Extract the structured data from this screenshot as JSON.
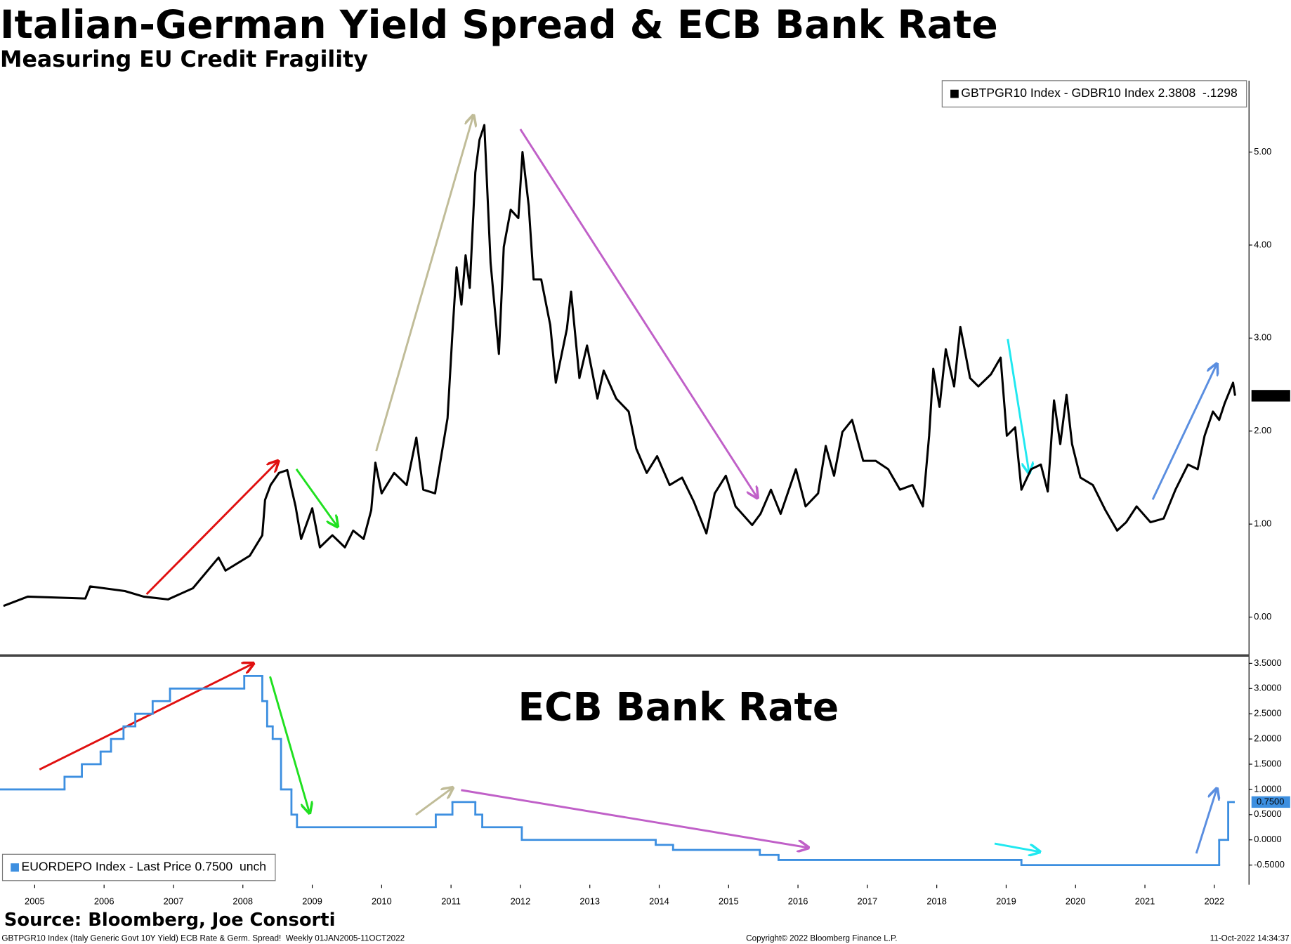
{
  "title": "Italian-German Yield Spread & ECB Bank Rate",
  "subtitle": "Measuring EU Credit Fragility",
  "chart_data": [
    {
      "type": "line",
      "legend": "top-right",
      "last_price_label": "2.3808",
      "xlim": [
        2005.0,
        2023.0
      ],
      "ylim": [
        -0.4,
        5.75
      ],
      "yticks": [
        {
          "value": 0,
          "label": "0.00"
        },
        {
          "value": 1,
          "label": "1.00"
        },
        {
          "value": 2,
          "label": "2.00"
        },
        {
          "value": 3,
          "label": "3.00"
        },
        {
          "value": 4,
          "label": "4.00"
        },
        {
          "value": 5,
          "label": "5.00"
        }
      ],
      "x": [
        2005.05,
        2005.4,
        2006.23,
        2006.3,
        2006.8,
        2007.07,
        2007.42,
        2007.78,
        2008.15,
        2008.25,
        2008.6,
        2008.78,
        2008.82,
        2008.9,
        2009.02,
        2009.14,
        2009.26,
        2009.34,
        2009.5,
        2009.61,
        2009.79,
        2009.97,
        2010.09,
        2010.24,
        2010.35,
        2010.41,
        2010.5,
        2010.68,
        2010.86,
        2011.0,
        2011.1,
        2011.27,
        2011.45,
        2011.52,
        2011.58,
        2011.65,
        2011.71,
        2011.77,
        2011.85,
        2011.91,
        2011.98,
        2012.07,
        2012.19,
        2012.26,
        2012.36,
        2012.47,
        2012.53,
        2012.62,
        2012.69,
        2012.8,
        2012.93,
        2013.01,
        2013.17,
        2013.23,
        2013.35,
        2013.46,
        2013.61,
        2013.7,
        2013.88,
        2014.06,
        2014.17,
        2014.32,
        2014.47,
        2014.65,
        2014.83,
        2015.0,
        2015.18,
        2015.3,
        2015.46,
        2015.6,
        2015.84,
        2015.96,
        2016.11,
        2016.25,
        2016.47,
        2016.61,
        2016.79,
        2016.9,
        2017.02,
        2017.14,
        2017.28,
        2017.44,
        2017.62,
        2017.8,
        2017.97,
        2018.15,
        2018.3,
        2018.39,
        2018.45,
        2018.54,
        2018.63,
        2018.75,
        2018.84,
        2018.98,
        2019.1,
        2019.28,
        2019.42,
        2019.51,
        2019.63,
        2019.72,
        2019.86,
        2020.0,
        2020.1,
        2020.19,
        2020.28,
        2020.37,
        2020.45,
        2020.57,
        2020.75,
        2020.93,
        2021.1,
        2021.23,
        2021.38,
        2021.58,
        2021.77,
        2021.94,
        2022.12,
        2022.26,
        2022.36,
        2022.48,
        2022.57,
        2022.65,
        2022.77,
        2022.8
      ],
      "series": [
        {
          "name": "GBTPGR10 Index - GDBR10 Index 2.3808  -.1298",
          "color": "#000000",
          "values": [
            0.12,
            0.22,
            0.2,
            0.33,
            0.28,
            0.22,
            0.19,
            0.31,
            0.64,
            0.5,
            0.66,
            0.88,
            1.26,
            1.42,
            1.55,
            1.58,
            1.19,
            0.84,
            1.17,
            0.75,
            0.88,
            0.75,
            0.93,
            0.84,
            1.15,
            1.66,
            1.33,
            1.55,
            1.42,
            1.93,
            1.37,
            1.33,
            2.14,
            3.05,
            3.76,
            3.36,
            3.89,
            3.54,
            4.78,
            5.13,
            5.29,
            3.81,
            2.83,
            3.98,
            4.38,
            4.29,
            5.0,
            4.42,
            3.63,
            3.63,
            3.14,
            2.52,
            3.1,
            3.5,
            2.57,
            2.92,
            2.35,
            2.65,
            2.35,
            2.21,
            1.81,
            1.55,
            1.73,
            1.42,
            1.5,
            1.24,
            0.9,
            1.33,
            1.52,
            1.19,
            0.99,
            1.11,
            1.37,
            1.11,
            1.59,
            1.19,
            1.33,
            1.84,
            1.52,
            1.99,
            2.12,
            1.68,
            1.68,
            1.59,
            1.37,
            1.42,
            1.19,
            1.95,
            2.67,
            2.26,
            2.88,
            2.48,
            3.12,
            2.57,
            2.48,
            2.61,
            2.79,
            1.95,
            2.04,
            1.37,
            1.59,
            1.64,
            1.35,
            2.33,
            1.86,
            2.39,
            1.86,
            1.5,
            1.42,
            1.15,
            0.93,
            1.02,
            1.19,
            1.02,
            1.06,
            1.37,
            1.64,
            1.59,
            1.95,
            2.21,
            2.12,
            2.3,
            2.52,
            2.38
          ]
        }
      ]
    },
    {
      "type": "step",
      "title": "ECB Bank Rate",
      "legend": "bottom-left",
      "last_price_label": "0.7500",
      "xlim": [
        2005.0,
        2023.0
      ],
      "ylim": [
        -0.89,
        3.63
      ],
      "yticks": [
        {
          "value": -0.5,
          "label": "-0.5000"
        },
        {
          "value": 0,
          "label": "0.0000"
        },
        {
          "value": 0.5,
          "label": "0.5000"
        },
        {
          "value": 1,
          "label": "1.0000"
        },
        {
          "value": 1.5,
          "label": "1.5000"
        },
        {
          "value": 2,
          "label": "2.0000"
        },
        {
          "value": 2.5,
          "label": "2.5000"
        },
        {
          "value": 3,
          "label": "3.0000"
        },
        {
          "value": 3.5,
          "label": "3.5000"
        }
      ],
      "xticks": [
        {
          "value": 2005.5,
          "label": "2005"
        },
        {
          "value": 2006.5,
          "label": "2006"
        },
        {
          "value": 2007.5,
          "label": "2007"
        },
        {
          "value": 2008.5,
          "label": "2008"
        },
        {
          "value": 2009.5,
          "label": "2009"
        },
        {
          "value": 2010.5,
          "label": "2010"
        },
        {
          "value": 2011.5,
          "label": "2011"
        },
        {
          "value": 2012.5,
          "label": "2012"
        },
        {
          "value": 2013.5,
          "label": "2013"
        },
        {
          "value": 2014.5,
          "label": "2014"
        },
        {
          "value": 2015.5,
          "label": "2015"
        },
        {
          "value": 2016.5,
          "label": "2016"
        },
        {
          "value": 2017.5,
          "label": "2017"
        },
        {
          "value": 2018.5,
          "label": "2018"
        },
        {
          "value": 2019.5,
          "label": "2019"
        },
        {
          "value": 2020.5,
          "label": "2020"
        },
        {
          "value": 2021.5,
          "label": "2021"
        },
        {
          "value": 2022.5,
          "label": "2022"
        }
      ],
      "x": [
        2005.0,
        2005.93,
        2006.18,
        2006.45,
        2006.6,
        2006.78,
        2006.95,
        2007.2,
        2007.45,
        2008.52,
        2008.78,
        2008.85,
        2008.93,
        2009.05,
        2009.2,
        2009.28,
        2011.28,
        2011.52,
        2011.85,
        2011.95,
        2012.52,
        2014.45,
        2014.7,
        2015.95,
        2016.22,
        2019.72,
        2022.57,
        2022.7,
        2022.78
      ],
      "series": [
        {
          "name": "EUORDEPO Index - Last Price 0.7500  unch",
          "color": "#3d8fe0",
          "values": [
            1.0,
            1.25,
            1.5,
            1.75,
            2.0,
            2.25,
            2.5,
            2.75,
            3.0,
            3.25,
            2.75,
            2.25,
            2.0,
            1.0,
            0.5,
            0.25,
            0.5,
            0.75,
            0.5,
            0.25,
            0.0,
            -0.1,
            -0.2,
            -0.3,
            -0.4,
            -0.5,
            0.0,
            0.75,
            0.75
          ]
        }
      ]
    }
  ],
  "footer": {
    "source": "Source: Bloomberg, Joe Consorti",
    "note": "GBTPGR10 Index (Italy Generic Govt 10Y Yield) ECB Rate & Germ. Spread!  Weekly 01JAN2005-11OCT2022",
    "copyright": "Copyright© 2022 Bloomberg Finance L.P.",
    "timestamp": "11-Oct-2022 14:34:37"
  }
}
